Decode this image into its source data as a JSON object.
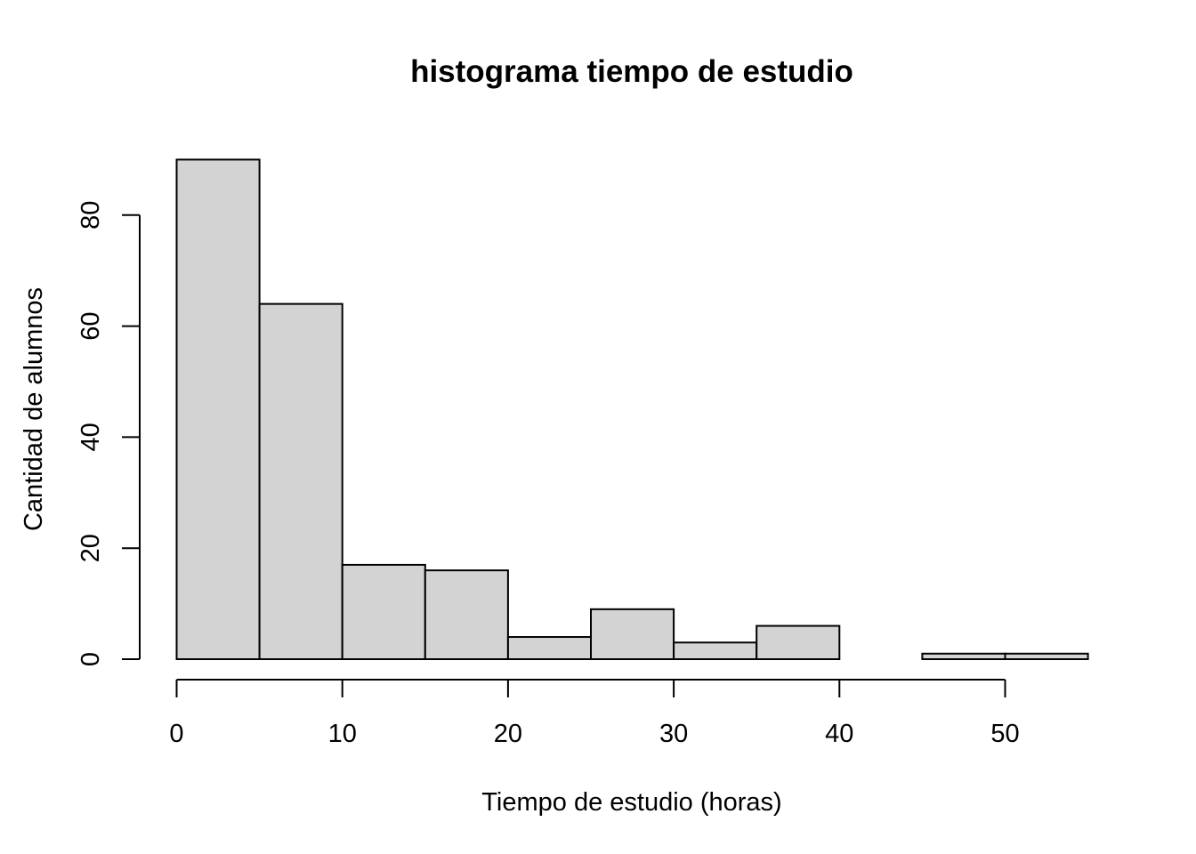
{
  "chart_data": {
    "type": "bar",
    "title": "histograma tiempo de estudio",
    "xlabel": "Tiempo de estudio (horas)",
    "ylabel": "Cantidad de alumnos",
    "bins": [
      {
        "start": 0,
        "end": 5,
        "count": 90
      },
      {
        "start": 5,
        "end": 10,
        "count": 64
      },
      {
        "start": 10,
        "end": 15,
        "count": 17
      },
      {
        "start": 15,
        "end": 20,
        "count": 16
      },
      {
        "start": 20,
        "end": 25,
        "count": 4
      },
      {
        "start": 25,
        "end": 30,
        "count": 9
      },
      {
        "start": 30,
        "end": 35,
        "count": 3
      },
      {
        "start": 35,
        "end": 40,
        "count": 6
      },
      {
        "start": 40,
        "end": 45,
        "count": 0
      },
      {
        "start": 45,
        "end": 50,
        "count": 1
      },
      {
        "start": 50,
        "end": 55,
        "count": 1
      }
    ],
    "xlim": [
      0,
      55
    ],
    "ylim": [
      0,
      90
    ],
    "x_axis_range": [
      0,
      50
    ],
    "y_axis_range": [
      0,
      80
    ],
    "x_ticks": [
      "0",
      "10",
      "20",
      "30",
      "40",
      "50"
    ],
    "y_ticks": [
      "0",
      "20",
      "40",
      "60",
      "80"
    ],
    "bar_color": "#d3d3d3",
    "grid": false,
    "legend": "none"
  }
}
